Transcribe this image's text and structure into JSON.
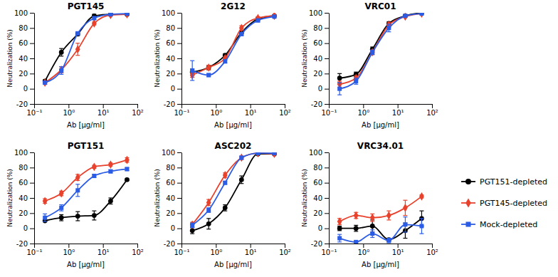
{
  "chart_data": [
    {
      "type": "line",
      "title": "PGT145",
      "xlabel": "Ab [µg/ml]",
      "ylabel": "Neutralization (%)",
      "log": "x",
      "legend": "right",
      "x": [
        0.206,
        0.617,
        1.85,
        5.56,
        16.7,
        50
      ],
      "xlim": [
        0.1,
        100
      ],
      "ylim": [
        -20,
        100
      ],
      "xticks": [
        {
          "value": 0.1,
          "label": "10⁻¹"
        },
        {
          "value": 1,
          "label": "10⁰"
        },
        {
          "value": 10,
          "label": "10¹"
        },
        {
          "value": 100,
          "label": "10²"
        }
      ],
      "yticks": [
        -20,
        0,
        20,
        40,
        60,
        80,
        100
      ],
      "series": [
        {
          "name": "PGT151-depleted",
          "color": "#000000",
          "marker": "circle",
          "values": [
            10,
            48,
            72,
            96,
            98,
            98
          ],
          "errors": [
            1,
            5,
            2,
            2,
            1,
            1
          ]
        },
        {
          "name": "PGT145-depleted",
          "color": "#e8412c",
          "marker": "diamond",
          "values": [
            8,
            25,
            52,
            86,
            97,
            98
          ],
          "errors": [
            2,
            4,
            8,
            2,
            1,
            1
          ]
        },
        {
          "name": "Mock-depleted",
          "color": "#2b5ce6",
          "marker": "square",
          "values": [
            8,
            24,
            73,
            93,
            98,
            99
          ],
          "errors": [
            2,
            5,
            2,
            2,
            1,
            1
          ]
        }
      ]
    },
    {
      "type": "line",
      "title": "2G12",
      "xlabel": "Ab [µg/ml]",
      "ylabel": "Neutralization (%)",
      "log": "x",
      "x": [
        0.206,
        0.617,
        1.85,
        5.56,
        16.7,
        50
      ],
      "xlim": [
        0.1,
        100
      ],
      "ylim": [
        -20,
        100
      ],
      "xticks": [
        {
          "value": 0.1,
          "label": "10⁻¹"
        },
        {
          "value": 1,
          "label": "10⁰"
        },
        {
          "value": 10,
          "label": "10¹"
        },
        {
          "value": 100,
          "label": "10²"
        }
      ],
      "yticks": [
        -20,
        0,
        20,
        40,
        60,
        80,
        100
      ],
      "series": [
        {
          "name": "PGT151-depleted",
          "color": "#000000",
          "marker": "circle",
          "values": [
            22,
            28,
            44,
            74,
            92,
            96
          ],
          "errors": [
            4,
            3,
            2,
            2,
            2,
            1
          ]
        },
        {
          "name": "PGT145-depleted",
          "color": "#e8412c",
          "marker": "diamond",
          "values": [
            18,
            28,
            40,
            80,
            93,
            96
          ],
          "errors": [
            3,
            3,
            2,
            3,
            2,
            1
          ]
        },
        {
          "name": "Mock-depleted",
          "color": "#2b5ce6",
          "marker": "square",
          "values": [
            24,
            18,
            36,
            72,
            90,
            95
          ],
          "errors": [
            13,
            2,
            2,
            2,
            2,
            1
          ]
        }
      ]
    },
    {
      "type": "line",
      "title": "VRC01",
      "xlabel": "Ab [µg/ml]",
      "ylabel": "Neutralization (%)",
      "log": "x",
      "x": [
        0.206,
        0.617,
        1.85,
        5.56,
        16.7,
        50
      ],
      "xlim": [
        0.1,
        100
      ],
      "ylim": [
        -20,
        100
      ],
      "xticks": [
        {
          "value": 0.1,
          "label": "10⁻¹"
        },
        {
          "value": 1,
          "label": "10⁰"
        },
        {
          "value": 10,
          "label": "10¹"
        },
        {
          "value": 100,
          "label": "10²"
        }
      ],
      "yticks": [
        -20,
        0,
        20,
        40,
        60,
        80,
        100
      ],
      "series": [
        {
          "name": "PGT151-depleted",
          "color": "#000000",
          "marker": "circle",
          "values": [
            14,
            19,
            52,
            86,
            96,
            100
          ],
          "errors": [
            6,
            3,
            3,
            2,
            1,
            1
          ]
        },
        {
          "name": "PGT145-depleted",
          "color": "#e8412c",
          "marker": "diamond",
          "values": [
            6,
            14,
            48,
            84,
            95,
            99
          ],
          "errors": [
            4,
            3,
            3,
            3,
            1,
            1
          ]
        },
        {
          "name": "Mock-depleted",
          "color": "#2b5ce6",
          "marker": "square",
          "values": [
            0,
            10,
            48,
            80,
            96,
            99
          ],
          "errors": [
            8,
            4,
            3,
            5,
            1,
            1
          ]
        }
      ]
    },
    {
      "type": "line",
      "title": "PGT151",
      "xlabel": "Ab [µg/ml]",
      "ylabel": "Neutralization (%)",
      "log": "x",
      "x": [
        0.206,
        0.617,
        1.85,
        5.56,
        16.7,
        50
      ],
      "xlim": [
        0.1,
        100
      ],
      "ylim": [
        -20,
        100
      ],
      "xticks": [
        {
          "value": 0.1,
          "label": "10⁻¹"
        },
        {
          "value": 1,
          "label": "10⁰"
        },
        {
          "value": 10,
          "label": "10¹"
        },
        {
          "value": 100,
          "label": "10²"
        }
      ],
      "yticks": [
        -20,
        0,
        20,
        40,
        60,
        80,
        100
      ],
      "series": [
        {
          "name": "PGT151-depleted",
          "color": "#000000",
          "marker": "circle",
          "values": [
            10,
            14,
            16,
            17,
            36,
            64
          ],
          "errors": [
            1,
            4,
            6,
            6,
            4,
            1
          ]
        },
        {
          "name": "PGT145-depleted",
          "color": "#e8412c",
          "marker": "diamond",
          "values": [
            36,
            46,
            67,
            81,
            84,
            90
          ],
          "errors": [
            3,
            3,
            4,
            2,
            2,
            3
          ]
        },
        {
          "name": "Mock-depleted",
          "color": "#2b5ce6",
          "marker": "square",
          "values": [
            14,
            27,
            50,
            69,
            75,
            78
          ],
          "errors": [
            5,
            4,
            8,
            2,
            2,
            2
          ]
        }
      ]
    },
    {
      "type": "line",
      "title": "ASC202",
      "xlabel": "Ab [µg/ml]",
      "ylabel": "Neutralization (%)",
      "log": "x",
      "x": [
        0.206,
        0.617,
        1.85,
        5.56,
        16.7,
        50
      ],
      "xlim": [
        0.1,
        100
      ],
      "ylim": [
        -20,
        100
      ],
      "xticks": [
        {
          "value": 0.1,
          "label": "10⁻¹"
        },
        {
          "value": 1,
          "label": "10⁰"
        },
        {
          "value": 10,
          "label": "10¹"
        },
        {
          "value": 100,
          "label": "10²"
        }
      ],
      "yticks": [
        -20,
        0,
        20,
        40,
        60,
        80,
        100
      ],
      "series": [
        {
          "name": "PGT151-depleted",
          "color": "#000000",
          "marker": "circle",
          "values": [
            -3,
            6,
            27,
            64,
            98,
            98
          ],
          "errors": [
            4,
            7,
            4,
            5,
            1,
            1
          ]
        },
        {
          "name": "PGT145-depleted",
          "color": "#e8412c",
          "marker": "diamond",
          "values": [
            5,
            34,
            70,
            93,
            99,
            98
          ],
          "errors": [
            3,
            4,
            3,
            2,
            1,
            1
          ]
        },
        {
          "name": "Mock-depleted",
          "color": "#2b5ce6",
          "marker": "square",
          "values": [
            4,
            24,
            60,
            93,
            99,
            99
          ],
          "errors": [
            3,
            3,
            2,
            2,
            1,
            1
          ]
        }
      ]
    },
    {
      "type": "line",
      "title": "VRC34.01",
      "xlabel": "Ab [µg/ml]",
      "ylabel": "Neutralization (%)",
      "log": "x",
      "x": [
        0.206,
        0.617,
        1.85,
        5.56,
        16.7,
        50
      ],
      "xlim": [
        0.1,
        100
      ],
      "ylim": [
        -20,
        100
      ],
      "xticks": [
        {
          "value": 0.1,
          "label": "10⁻¹"
        },
        {
          "value": 1,
          "label": "10⁰"
        },
        {
          "value": 10,
          "label": "10¹"
        },
        {
          "value": 100,
          "label": "10²"
        }
      ],
      "yticks": [
        -20,
        0,
        20,
        40,
        60,
        80,
        100
      ],
      "series": [
        {
          "name": "PGT151-depleted",
          "color": "#000000",
          "marker": "circle",
          "values": [
            0,
            0,
            3,
            -15,
            -3,
            13
          ],
          "errors": [
            3,
            4,
            8,
            2,
            10,
            10
          ]
        },
        {
          "name": "PGT145-depleted",
          "color": "#e8412c",
          "marker": "diamond",
          "values": [
            9,
            17,
            14,
            17,
            27,
            42
          ],
          "errors": [
            4,
            4,
            5,
            6,
            10,
            2
          ]
        },
        {
          "name": "Mock-depleted",
          "color": "#2b5ce6",
          "marker": "square",
          "values": [
            -13,
            -18,
            -7,
            -16,
            5,
            3
          ],
          "errors": [
            5,
            1,
            5,
            3,
            10,
            10
          ]
        }
      ]
    }
  ]
}
